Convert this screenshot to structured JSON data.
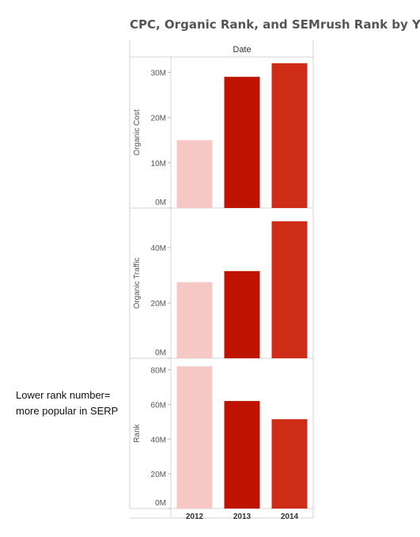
{
  "chart_data": {
    "type": "bar",
    "title": "CPC, Organic Rank, and SEMrush Rank by Year",
    "column_header": "Date",
    "categories": [
      "2012",
      "2013",
      "2014"
    ],
    "bar_colors": [
      "#f5c8c5",
      "#bd1300",
      "#ce2c17"
    ],
    "panels": [
      {
        "ylabel": "Organic Cost",
        "ylim": [
          0,
          32
        ],
        "ticks": [
          0,
          10,
          20,
          30
        ],
        "tick_labels": [
          "0M",
          "10M",
          "20M",
          "30M"
        ],
        "values": [
          15,
          29,
          32
        ]
      },
      {
        "ylabel": "Organic Traffic",
        "ylim": [
          0,
          52
        ],
        "ticks": [
          0,
          20,
          40
        ],
        "tick_labels": [
          "0M",
          "20M",
          "40M"
        ],
        "values": [
          27.5,
          31.5,
          49.5
        ]
      },
      {
        "ylabel": "Rank",
        "ylim": [
          0,
          83
        ],
        "ticks": [
          0,
          20,
          40,
          60,
          80
        ],
        "tick_labels": [
          "0M",
          "20M",
          "40M",
          "60M",
          "80M"
        ],
        "values": [
          82,
          62,
          51.5
        ]
      }
    ],
    "grid": false,
    "legend": "none"
  },
  "annotation": {
    "line1": "Lower rank number=",
    "line2": "more popular in SERP"
  }
}
